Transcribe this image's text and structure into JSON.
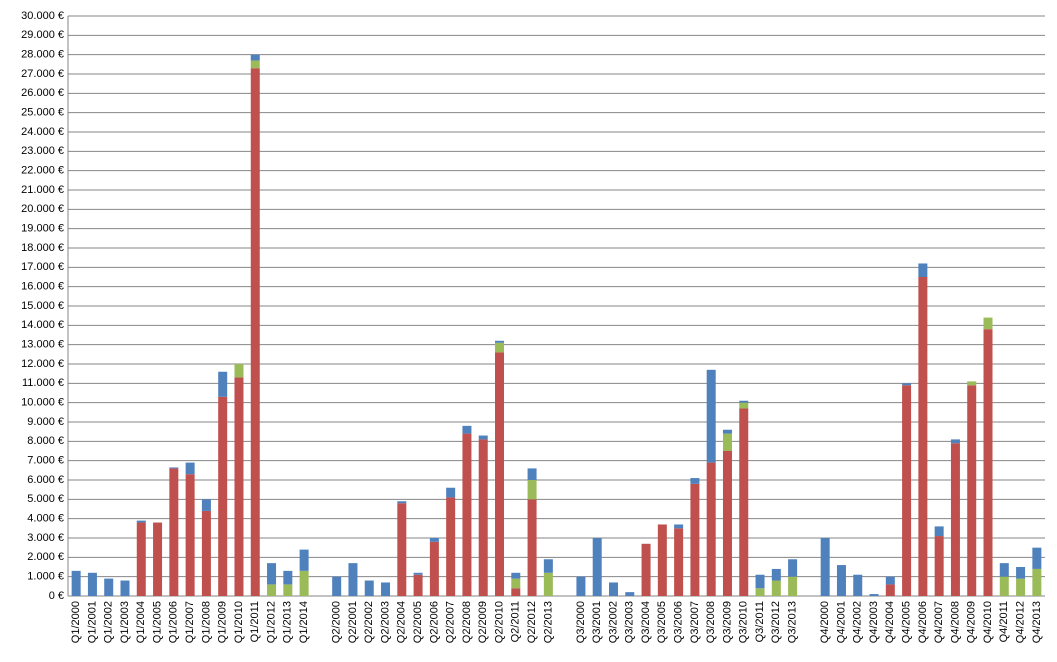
{
  "chart_data": {
    "type": "stacked-bar",
    "categories": [
      "Q1/2000",
      "Q1/2001",
      "Q1/2002",
      "Q1/2003",
      "Q1/2004",
      "Q1/2005",
      "Q1/2006",
      "Q1/2007",
      "Q1/2008",
      "Q1/2009",
      "Q1/2010",
      "Q1/2011",
      "Q1/2012",
      "Q1/2013",
      "Q1/2014",
      null,
      "Q2/2000",
      "Q2/2001",
      "Q2/2002",
      "Q2/2003",
      "Q2/2004",
      "Q2/2005",
      "Q2/2006",
      "Q2/2007",
      "Q2/2008",
      "Q2/2009",
      "Q2/2010",
      "Q2/2011",
      "Q2/2012",
      "Q2/2013",
      null,
      "Q3/2000",
      "Q3/2001",
      "Q3/2002",
      "Q3/2003",
      "Q3/2004",
      "Q3/2005",
      "Q3/2006",
      "Q3/2007",
      "Q3/2008",
      "Q3/2009",
      "Q3/2010",
      "Q3/2011",
      "Q3/2012",
      "Q3/2013",
      null,
      "Q4/2000",
      "Q4/2001",
      "Q4/2002",
      "Q4/2003",
      "Q4/2004",
      "Q4/2005",
      "Q4/2006",
      "Q4/2007",
      "Q4/2008",
      "Q4/2009",
      "Q4/2010",
      "Q4/2011",
      "Q4/2012",
      "Q4/2013"
    ],
    "series": [
      {
        "color": "#c0504d",
        "values": [
          0,
          0,
          0,
          0,
          3800,
          3800,
          6600,
          6300,
          4400,
          10300,
          11300,
          27300,
          0,
          0,
          0,
          null,
          0,
          0,
          0,
          0,
          4800,
          1100,
          2800,
          5100,
          8400,
          8100,
          12600,
          400,
          5000,
          0,
          null,
          0,
          0,
          0,
          0,
          2700,
          3700,
          3500,
          5800,
          6900,
          7500,
          9700,
          0,
          0,
          0,
          null,
          0,
          0,
          0,
          0,
          600,
          10900,
          16500,
          3100,
          7900,
          10900,
          13800,
          0,
          0,
          0
        ]
      },
      {
        "color": "#9bbb59",
        "values": [
          0,
          0,
          0,
          0,
          0,
          0,
          0,
          0,
          0,
          0,
          700,
          400,
          600,
          600,
          1300,
          null,
          0,
          0,
          0,
          0,
          0,
          0,
          0,
          0,
          0,
          0,
          500,
          500,
          1000,
          1200,
          null,
          0,
          0,
          0,
          0,
          0,
          0,
          0,
          0,
          0,
          900,
          300,
          400,
          800,
          1000,
          null,
          0,
          0,
          0,
          0,
          0,
          0,
          0,
          0,
          0,
          200,
          600,
          1000,
          900,
          1400
        ]
      },
      {
        "color": "#4f81bd",
        "values": [
          1300,
          1200,
          900,
          800,
          100,
          0,
          50,
          600,
          600,
          1300,
          0,
          300,
          1100,
          700,
          1100,
          null,
          1000,
          1700,
          800,
          700,
          100,
          100,
          200,
          500,
          400,
          200,
          100,
          300,
          600,
          700,
          null,
          1000,
          3000,
          700,
          200,
          0,
          0,
          200,
          300,
          4800,
          200,
          100,
          700,
          600,
          900,
          null,
          3000,
          1600,
          1100,
          100,
          400,
          100,
          700,
          500,
          200,
          0,
          0,
          700,
          600,
          1100
        ]
      }
    ],
    "ylim": [
      0,
      30000
    ],
    "yticks": [
      {
        "value": 0,
        "label": "0 €"
      },
      {
        "value": 1000,
        "label": "1.000 €"
      },
      {
        "value": 2000,
        "label": "2.000 €"
      },
      {
        "value": 3000,
        "label": "3.000 €"
      },
      {
        "value": 4000,
        "label": "4.000 €"
      },
      {
        "value": 5000,
        "label": "5.000 €"
      },
      {
        "value": 6000,
        "label": "6.000 €"
      },
      {
        "value": 7000,
        "label": "7.000 €"
      },
      {
        "value": 8000,
        "label": "8.000 €"
      },
      {
        "value": 9000,
        "label": "9.000 €"
      },
      {
        "value": 10000,
        "label": "10.000 €"
      },
      {
        "value": 11000,
        "label": "11.000 €"
      },
      {
        "value": 12000,
        "label": "12.000 €"
      },
      {
        "value": 13000,
        "label": "13.000 €"
      },
      {
        "value": 14000,
        "label": "14.000 €"
      },
      {
        "value": 15000,
        "label": "15.000 €"
      },
      {
        "value": 16000,
        "label": "16.000 €"
      },
      {
        "value": 17000,
        "label": "17.000 €"
      },
      {
        "value": 18000,
        "label": "18.000 €"
      },
      {
        "value": 19000,
        "label": "19.000 €"
      },
      {
        "value": 20000,
        "label": "20.000 €"
      },
      {
        "value": 21000,
        "label": "21.000 €"
      },
      {
        "value": 22000,
        "label": "22.000 €"
      },
      {
        "value": 23000,
        "label": "23.000 €"
      },
      {
        "value": 24000,
        "label": "24.000 €"
      },
      {
        "value": 25000,
        "label": "25.000 €"
      },
      {
        "value": 26000,
        "label": "26.000 €"
      },
      {
        "value": 27000,
        "label": "27.000 €"
      },
      {
        "value": 28000,
        "label": "28.000 €"
      },
      {
        "value": 29000,
        "label": "29.000 €"
      },
      {
        "value": 30000,
        "label": "30.000 €"
      }
    ],
    "grid": true
  }
}
